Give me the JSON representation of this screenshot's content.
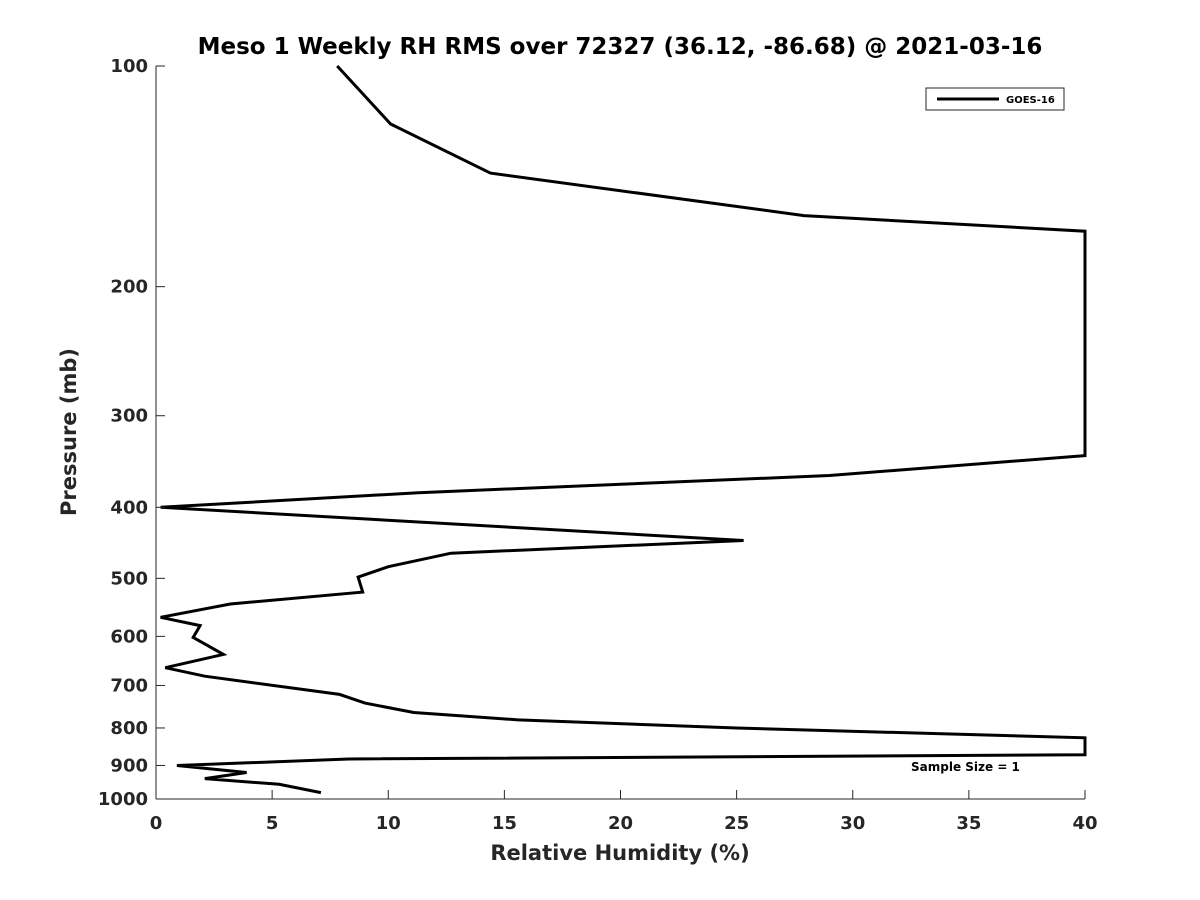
{
  "chart_data": {
    "type": "line",
    "title": "Meso 1 Weekly RH RMS over 72327 (36.12, -86.68) @ 2021-03-16",
    "xlabel": "Relative Humidity (%)",
    "ylabel": "Pressure (mb)",
    "xlim": [
      0,
      40
    ],
    "ylim": [
      100,
      1000
    ],
    "y_scale": "log",
    "y_reversed": true,
    "grid": false,
    "legend_position": "top-right",
    "x_ticks": [
      "0",
      "5",
      "10",
      "15",
      "20",
      "25",
      "30",
      "35",
      "40"
    ],
    "y_ticks": [
      "100",
      "200",
      "300",
      "400",
      "500",
      "600",
      "700",
      "800",
      "900",
      "1000"
    ],
    "series": [
      {
        "name": "GOES-16",
        "color": "#000000",
        "points": [
          {
            "x": 7.8,
            "y": 100
          },
          {
            "x": 10.1,
            "y": 120
          },
          {
            "x": 14.4,
            "y": 140
          },
          {
            "x": 27.9,
            "y": 160
          },
          {
            "x": 40.0,
            "y": 168
          },
          {
            "x": 40.5,
            "y": 168
          },
          {
            "x": 40.0,
            "y": 340
          },
          {
            "x": 29.0,
            "y": 362
          },
          {
            "x": 11.3,
            "y": 382
          },
          {
            "x": 0.2,
            "y": 400
          },
          {
            "x": 25.3,
            "y": 444
          },
          {
            "x": 12.7,
            "y": 462
          },
          {
            "x": 10.0,
            "y": 482
          },
          {
            "x": 8.7,
            "y": 498
          },
          {
            "x": 8.9,
            "y": 522
          },
          {
            "x": 3.2,
            "y": 542
          },
          {
            "x": 0.2,
            "y": 565
          },
          {
            "x": 1.9,
            "y": 580
          },
          {
            "x": 1.6,
            "y": 602
          },
          {
            "x": 2.9,
            "y": 635
          },
          {
            "x": 0.4,
            "y": 662
          },
          {
            "x": 2.1,
            "y": 680
          },
          {
            "x": 7.9,
            "y": 720
          },
          {
            "x": 9.0,
            "y": 740
          },
          {
            "x": 11.1,
            "y": 762
          },
          {
            "x": 15.6,
            "y": 780
          },
          {
            "x": 25.0,
            "y": 800
          },
          {
            "x": 40.0,
            "y": 825
          },
          {
            "x": 40.5,
            "y": 826
          },
          {
            "x": 40.0,
            "y": 870
          },
          {
            "x": 8.3,
            "y": 882
          },
          {
            "x": 0.9,
            "y": 900
          },
          {
            "x": 3.9,
            "y": 920
          },
          {
            "x": 2.1,
            "y": 938
          },
          {
            "x": 5.3,
            "y": 955
          },
          {
            "x": 7.1,
            "y": 980
          }
        ]
      }
    ],
    "annotations": [
      {
        "text": "Sample Size = 1"
      }
    ]
  }
}
